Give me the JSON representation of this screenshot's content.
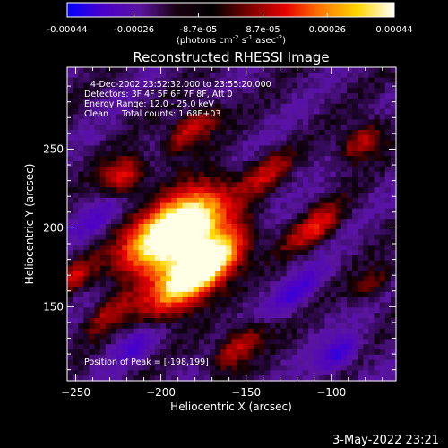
{
  "colorbar": {
    "tick_labels": [
      "-0.00044",
      "-0.00026",
      "-8.7e-05",
      "8.7e-05",
      "0.00026",
      "0.00044"
    ],
    "tick_values": [
      -0.00044,
      -0.00026,
      -8.7e-05,
      8.7e-05,
      0.00026,
      0.00044
    ],
    "range": [
      -0.00044,
      0.00044
    ],
    "unit_prefix": "(photons cm",
    "unit_exp1": "-2",
    "unit_mid": " s",
    "unit_exp2": "-1",
    "unit_mid2": " asec",
    "unit_exp3": "-2",
    "unit_suffix": ")",
    "colors": [
      "#0000ff",
      "#4b00c8",
      "#5a14a0",
      "#1a0010",
      "#000000",
      "#7a0000",
      "#e60000",
      "#ff7a00",
      "#ffd700",
      "#ffffff"
    ]
  },
  "chart_data": {
    "type": "heatmap",
    "title": "Reconstructed RHESSI Image",
    "xlabel": "Heliocentric X (arcsec)",
    "ylabel": "Heliocentric Y (arcsec)",
    "xlim": [
      -255,
      -62
    ],
    "ylim": [
      103,
      302
    ],
    "x_ticks": [
      -250,
      -200,
      -150,
      -100
    ],
    "y_ticks": [
      150,
      200,
      250
    ],
    "x_tick_labels": [
      "−250",
      "−200",
      "−150",
      "−100"
    ],
    "y_tick_labels": [
      "150",
      "200",
      "250"
    ],
    "annotations": {
      "time": "4-Dec-2002 23:52:32.000 to 23:55:20.000",
      "detectors": "Detectors: 3F 4F 5F 6F 7F 8F, Att 0",
      "energy": "Energy Range: 12.0 - 25.0 keV",
      "method": "Clean     Total counts: 1.68E+03",
      "peak": "Position of Peak = [-198,199]"
    },
    "peak_position": [
      -198,
      199
    ],
    "total_counts": 1680,
    "energy_range_kev": [
      12.0,
      25.0
    ],
    "ridges": [
      {
        "x": -197,
        "y": 201,
        "sx": 25,
        "sy": 9,
        "angle_deg": 42,
        "amp": 1.0
      },
      {
        "x": -186,
        "y": 194,
        "sx": 22,
        "sy": 9,
        "angle_deg": 42,
        "amp": 0.85
      },
      {
        "x": -183,
        "y": 167,
        "sx": 22,
        "sy": 9,
        "angle_deg": 42,
        "amp": 0.9
      },
      {
        "x": -170,
        "y": 180,
        "sx": 18,
        "sy": 8,
        "angle_deg": 42,
        "amp": 0.7
      },
      {
        "x": -222,
        "y": 233,
        "sx": 10,
        "sy": 7,
        "angle_deg": 42,
        "amp": 0.55
      },
      {
        "x": -182,
        "y": 263,
        "sx": 14,
        "sy": 6,
        "angle_deg": 42,
        "amp": 0.5
      },
      {
        "x": -138,
        "y": 235,
        "sx": 12,
        "sy": 6,
        "angle_deg": 42,
        "amp": 0.35
      },
      {
        "x": -110,
        "y": 200,
        "sx": 14,
        "sy": 6,
        "angle_deg": 42,
        "amp": 0.45
      },
      {
        "x": -82,
        "y": 255,
        "sx": 12,
        "sy": 6,
        "angle_deg": 42,
        "amp": 0.45
      },
      {
        "x": -155,
        "y": 125,
        "sx": 14,
        "sy": 6,
        "angle_deg": 42,
        "amp": 0.45
      },
      {
        "x": -232,
        "y": 145,
        "sx": 12,
        "sy": 5,
        "angle_deg": 42,
        "amp": 0.3
      },
      {
        "x": -250,
        "y": 170,
        "sx": 8,
        "sy": 5,
        "angle_deg": 42,
        "amp": 0.35
      },
      {
        "x": -75,
        "y": 165,
        "sx": 10,
        "sy": 5,
        "angle_deg": 42,
        "amp": 0.3
      },
      {
        "x": -215,
        "y": 125,
        "sx": 10,
        "sy": 5,
        "angle_deg": 42,
        "amp": -0.35
      },
      {
        "x": -120,
        "y": 160,
        "sx": 14,
        "sy": 5,
        "angle_deg": 42,
        "amp": -0.4
      },
      {
        "x": -238,
        "y": 205,
        "sx": 12,
        "sy": 5,
        "angle_deg": 42,
        "amp": -0.3
      },
      {
        "x": -95,
        "y": 120,
        "sx": 10,
        "sy": 5,
        "angle_deg": 42,
        "amp": -0.5
      }
    ]
  },
  "footer": {
    "timestamp": "3-May-2022 23:21"
  }
}
